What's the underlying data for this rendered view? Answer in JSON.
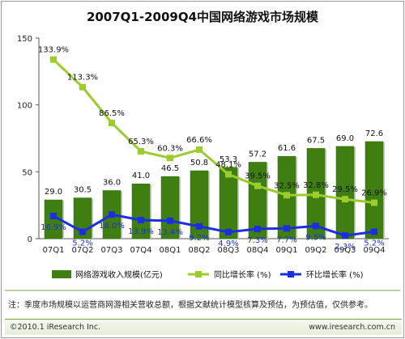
{
  "chart_data": {
    "type": "bar+line",
    "title": "2007Q1-2009Q4中国网络游戏市场规模",
    "categories": [
      "07Q1",
      "07Q2",
      "07Q3",
      "07Q4",
      "08Q1",
      "08Q2",
      "08Q3",
      "08Q4",
      "09Q1",
      "09Q2",
      "09Q3",
      "09Q4"
    ],
    "ylim": [
      0,
      150
    ],
    "yticks": [
      "0",
      "50",
      "100",
      "150"
    ],
    "series": [
      {
        "name": "网络游戏收入规模(亿元)",
        "kind": "bar",
        "color": "#3f7f12",
        "values": [
          29.0,
          30.5,
          36.0,
          41.0,
          46.5,
          50.8,
          53.3,
          57.2,
          61.6,
          67.5,
          69.0,
          72.6
        ],
        "labels": [
          "29.0",
          "30.5",
          "36.0",
          "41.0",
          "46.5",
          "50.8",
          "53.3",
          "57.2",
          "61.6",
          "67.5",
          "69.0",
          "72.6"
        ]
      },
      {
        "name": "同比增长率 (%)",
        "kind": "line",
        "color": "#9ccc2e",
        "values": [
          133.9,
          113.3,
          86.5,
          65.3,
          60.3,
          66.6,
          48.1,
          39.5,
          32.5,
          32.8,
          29.5,
          26.9
        ],
        "labels": [
          "133.9%",
          "113.3%",
          "86.5%",
          "65.3%",
          "60.3%",
          "66.6%",
          "48.1%",
          "39.5%",
          "32.5%",
          "32.8%",
          "29.5%",
          "26.9%"
        ]
      },
      {
        "name": "环比增长率 (%)",
        "kind": "line",
        "color": "#1c2fe0",
        "values": [
          16.9,
          5.2,
          18.0,
          13.9,
          13.4,
          9.2,
          4.9,
          7.3,
          7.7,
          9.5,
          2.3,
          5.2
        ],
        "labels": [
          "16.9%",
          "5.2%",
          "18.0%",
          "13.9%",
          "13.4%",
          "9.2%",
          "4.9%",
          "7.3%",
          "7.7%",
          "9.5%",
          "2.3%",
          "5.2%"
        ]
      }
    ],
    "grid": false,
    "legend_position": "bottom"
  },
  "note": "注：季度市场规模以运营商网游相关营收总额，根据文献统计模型核算及预估，为预估值，仅供参考。",
  "copyright": "©2010.1 iResearch Inc.",
  "website": "www.iresearch.com.cn"
}
